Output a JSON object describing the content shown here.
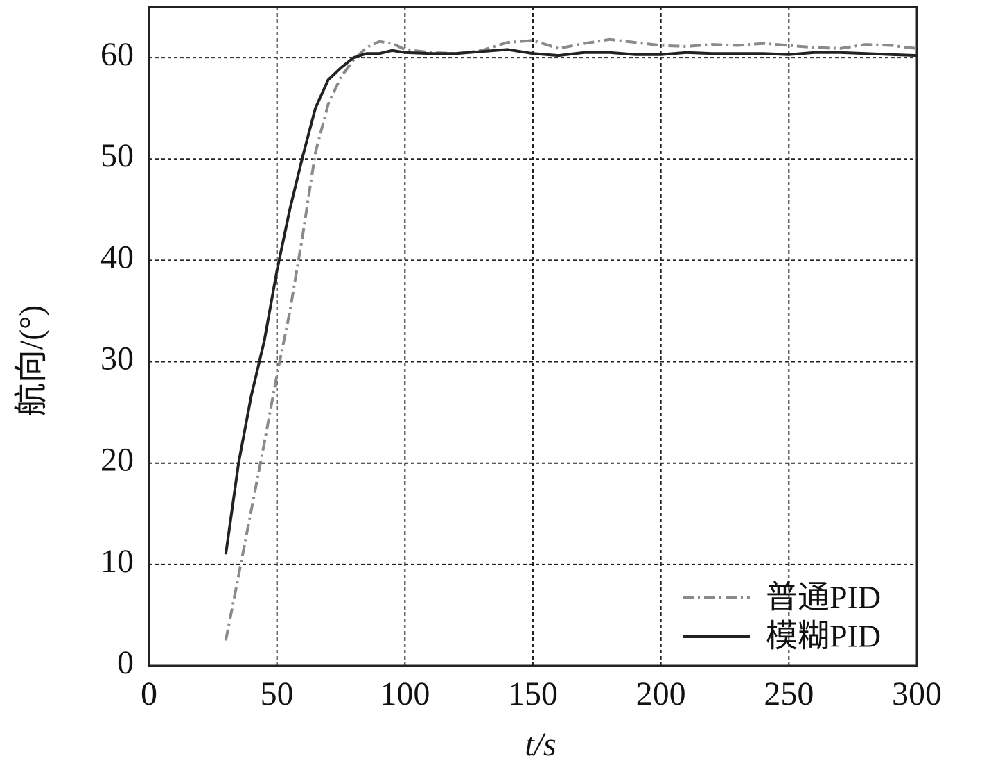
{
  "chart_data": {
    "type": "line",
    "xlabel": "t/s",
    "ylabel": "航向/(°)",
    "x": [
      30,
      35,
      40,
      45,
      50,
      55,
      60,
      65,
      70,
      75,
      80,
      85,
      90,
      95,
      100,
      110,
      120,
      130,
      140,
      150,
      160,
      170,
      180,
      190,
      200,
      210,
      220,
      230,
      240,
      250,
      260,
      270,
      280,
      290,
      300
    ],
    "series": [
      {
        "name": "普通PID",
        "color": "#8a8a8a",
        "style": "dashdot",
        "values": [
          2.5,
          8.9,
          15.4,
          21.9,
          28.7,
          34.9,
          42.4,
          50.6,
          55.4,
          58.1,
          59.8,
          61,
          61.6,
          61.4,
          60.8,
          60.5,
          60.4,
          60.7,
          61.5,
          61.7,
          60.9,
          61.4,
          61.8,
          61.5,
          61.2,
          61.1,
          61.3,
          61.2,
          61.4,
          61.2,
          61,
          60.9,
          61.3,
          61.2,
          60.9
        ]
      },
      {
        "name": "模糊PID",
        "color": "#222222",
        "style": "solid",
        "values": [
          11,
          20,
          26.7,
          32,
          39,
          45,
          50.2,
          55,
          57.8,
          59,
          60,
          60.4,
          60.4,
          60.7,
          60.5,
          60.4,
          60.4,
          60.6,
          60.8,
          60.4,
          60.2,
          60.5,
          60.5,
          60.3,
          60.3,
          60.5,
          60.4,
          60.4,
          60.4,
          60.3,
          60.5,
          60.5,
          60.4,
          60.3,
          60.2
        ]
      }
    ],
    "xlim": [
      0,
      300
    ],
    "ylim": [
      0,
      65
    ],
    "xticks": [
      0,
      50,
      100,
      150,
      200,
      250,
      300
    ],
    "yticks": [
      0,
      10,
      20,
      30,
      40,
      50,
      60
    ],
    "grid": true,
    "legend": "lower-right"
  }
}
